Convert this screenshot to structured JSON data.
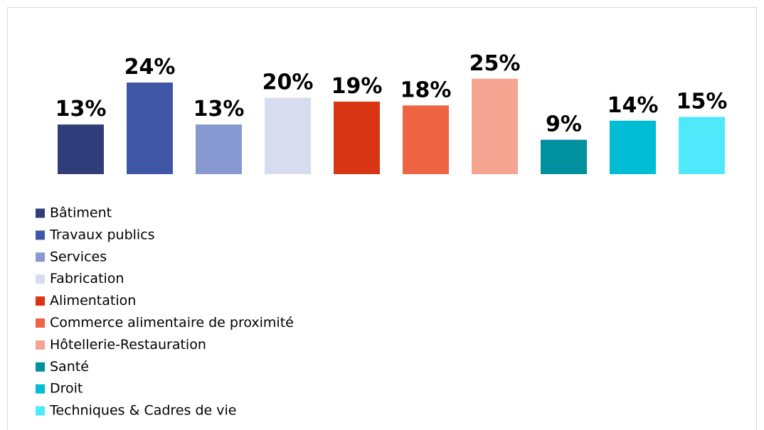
{
  "chart_data": {
    "type": "bar",
    "categories": [
      "Bâtiment",
      "Travaux publics",
      "Services",
      "Fabrication",
      "Alimentation",
      "Commerce alimentaire de proximité",
      "Hôtellerie-Restauration",
      "Santé",
      "Droit",
      "Techniques & Cadres de vie"
    ],
    "values": [
      13,
      24,
      13,
      20,
      19,
      18,
      25,
      9,
      14,
      15
    ],
    "value_labels": [
      "13%",
      "24%",
      "13%",
      "20%",
      "19%",
      "18%",
      "25%",
      "9%",
      "14%",
      "15%"
    ],
    "colors": [
      "#2f3d7a",
      "#3f56a6",
      "#8898d0",
      "#d8dcef",
      "#d73513",
      "#ef6544",
      "#f5a591",
      "#00909e",
      "#00bdd6",
      "#50e9fb"
    ]
  }
}
